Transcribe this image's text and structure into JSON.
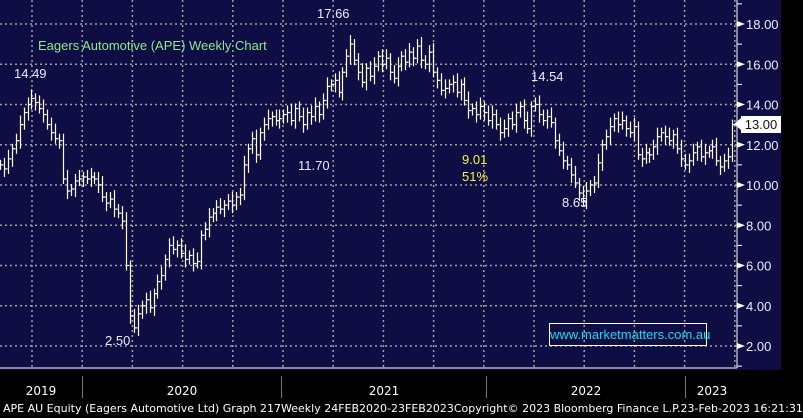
{
  "chart_data": {
    "type": "bar",
    "style": "ohlc-weekly",
    "title": "Eagers Automotive (APE) Weekly Chart",
    "frequency": "weekly",
    "first_bar": "2019-08-02",
    "x_range": [
      "2019-08-02",
      "2023-03-10"
    ],
    "ylim": [
      1,
      19
    ],
    "yticks": [
      "2.00",
      "4.00",
      "6.00",
      "8.00",
      "10.00",
      "12.00",
      "14.00",
      "16.00",
      "18.00"
    ],
    "grid": true,
    "x_year_labels": [
      "2019",
      "2020",
      "2021",
      "2022",
      "2023"
    ],
    "last_price": "13.00",
    "close": [
      11.0,
      10.8,
      11.3,
      11.8,
      12.2,
      13.0,
      13.6,
      14.0,
      14.3,
      14.1,
      13.8,
      13.5,
      13.0,
      12.6,
      12.3,
      12.2,
      10.3,
      9.7,
      9.8,
      10.2,
      10.3,
      10.4,
      10.3,
      10.4,
      10.3,
      10.0,
      9.4,
      9.1,
      9.3,
      8.8,
      8.6,
      8.2,
      6.0,
      3.5,
      2.9,
      3.6,
      4.0,
      4.3,
      3.9,
      4.6,
      5.2,
      5.5,
      6.3,
      7.0,
      6.8,
      7.0,
      6.6,
      6.3,
      6.5,
      6.1,
      6.2,
      7.5,
      7.8,
      8.4,
      8.6,
      8.9,
      8.8,
      9.0,
      9.2,
      9.0,
      9.4,
      9.5,
      11.0,
      11.8,
      12.3,
      11.5,
      12.6,
      13.0,
      13.3,
      13.4,
      13.2,
      13.3,
      13.5,
      13.6,
      13.2,
      13.8,
      13.4,
      13.0,
      13.6,
      13.4,
      13.9,
      13.5,
      14.2,
      14.9,
      15.0,
      15.2,
      14.6,
      15.6,
      16.4,
      17.0,
      16.2,
      15.6,
      15.1,
      15.8,
      15.4,
      15.9,
      16.4,
      16.0,
      16.3,
      15.6,
      15.3,
      15.9,
      16.4,
      16.1,
      16.6,
      16.3,
      16.9,
      16.2,
      16.0,
      16.6,
      15.6,
      15.2,
      14.7,
      14.8,
      15.0,
      15.1,
      14.6,
      15.0,
      14.2,
      13.7,
      13.8,
      13.5,
      13.9,
      13.6,
      13.2,
      13.5,
      13.0,
      12.6,
      12.8,
      13.3,
      13.0,
      13.6,
      13.9,
      13.2,
      12.8,
      13.9,
      14.0,
      13.5,
      13.2,
      13.4,
      13.1,
      12.2,
      11.7,
      11.2,
      11.0,
      10.5,
      10.1,
      9.6,
      9.2,
      9.7,
      10.0,
      10.1,
      11.1,
      12.0,
      12.4,
      12.9,
      13.3,
      13.0,
      13.2,
      12.8,
      12.6,
      12.9,
      11.5,
      11.3,
      11.6,
      11.5,
      11.9,
      12.4,
      12.6,
      12.4,
      12.2,
      12.5,
      11.8,
      11.3,
      11.0,
      11.2,
      11.6,
      11.9,
      11.4,
      11.6,
      11.7,
      11.9,
      11.2,
      10.9,
      11.2,
      11.4,
      13.0
    ],
    "annotations": {
      "high_2019": "14.49",
      "low_2020": "2.50",
      "low_2021": "11.70",
      "high_2021": "17.66",
      "high_2022": "14.54",
      "low_2022": "8.65",
      "drawdown_value": "9.01",
      "drawdown_pct": "51%"
    },
    "colors": {
      "background": "#0e0d44",
      "bars": "#ffffff",
      "title": "#8fe88f",
      "drawdown": "#f5f53a",
      "watermark": "#19d9f0"
    }
  },
  "watermark": "www.marketmatters.com.au",
  "footer": {
    "security": "APE AU Equity (Eagers Automotive Ltd) Graph 217",
    "period": "Weekly 24FEB2020-23FEB2023",
    "copyright": "Copyright© 2023 Bloomberg Finance L.P.",
    "timestamp": "23-Feb-2023 16:21:31"
  }
}
